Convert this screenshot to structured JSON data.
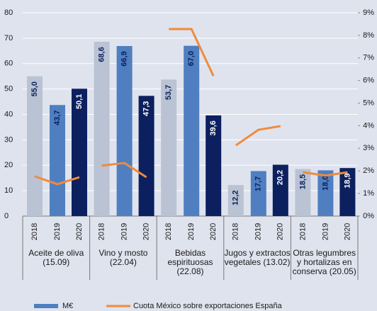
{
  "chart_data": {
    "type": "bar",
    "groups": [
      [
        "Aceite de  oliva",
        "(15.09)"
      ],
      [
        "Vino y mosto",
        "(22.04)"
      ],
      [
        "Bebidas",
        "espirituosas",
        "(22.08)"
      ],
      [
        "Jugos y extractos",
        "vegetales (13.02)"
      ],
      [
        "Otras legumbres",
        "y hortalizas en",
        "conserva  (20.05)"
      ]
    ],
    "subcategories": [
      2018,
      2019,
      2020
    ],
    "series": [
      {
        "name": "M€",
        "type": "bar",
        "colors": [
          "#b9c3d3",
          "#4f7fc0",
          "#0c1f5e"
        ],
        "values": [
          55.0,
          43.7,
          50.1,
          68.6,
          66.9,
          47.3,
          53.7,
          67.0,
          39.6,
          12.2,
          17.7,
          20.2,
          18.5,
          18.0,
          18.9
        ],
        "value_labels": [
          "55,0",
          "43,7",
          "50,1",
          "68,6",
          "66,9",
          "47,3",
          "53,7",
          "67,0",
          "39,6",
          "12,2",
          "17,7",
          "20,2",
          "18,5",
          "18,0",
          "18,9"
        ]
      },
      {
        "name": "Cuota México sobre exportaciones España",
        "type": "line",
        "axis": "y2",
        "color": "#f08a3c",
        "values": [
          1.76,
          1.41,
          1.72,
          2.23,
          2.35,
          1.72,
          8.28,
          8.28,
          6.2,
          3.13,
          3.82,
          3.98,
          1.94,
          1.79,
          1.94
        ]
      }
    ],
    "ylim": [
      0,
      80
    ],
    "yticks": [
      0,
      10,
      20,
      30,
      40,
      50,
      60,
      70,
      80
    ],
    "y2lim": [
      0,
      9
    ],
    "y2ticks": [
      {
        "value": 0,
        "label": "0%"
      },
      {
        "value": 1,
        "label": "1%"
      },
      {
        "value": 2,
        "label": "2%"
      },
      {
        "value": 3,
        "label": "3%"
      },
      {
        "value": 4,
        "label": "4%"
      },
      {
        "value": 5,
        "label": "5%"
      },
      {
        "value": 6,
        "label": "6%"
      },
      {
        "value": 7,
        "label": "7%"
      },
      {
        "value": 8,
        "label": "8%"
      },
      {
        "value": 9,
        "label": "9%"
      }
    ],
    "grid": true
  }
}
